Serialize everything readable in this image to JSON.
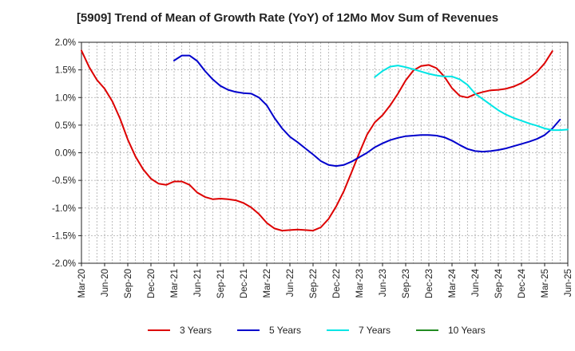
{
  "chart_data": {
    "type": "line",
    "title": "[5909]  Trend of Mean of Growth Rate (YoY) of 12Mo Mov Sum of Revenues",
    "xlabel": "",
    "ylabel": "",
    "ylim": [
      -2.0,
      2.0
    ],
    "yticks": [
      {
        "value": 2.0,
        "label": "2.0%"
      },
      {
        "value": 1.5,
        "label": "1.5%"
      },
      {
        "value": 1.0,
        "label": "1.0%"
      },
      {
        "value": 0.5,
        "label": "0.5%"
      },
      {
        "value": 0.0,
        "label": "0.0%"
      },
      {
        "value": -0.5,
        "label": "-0.5%"
      },
      {
        "value": -1.0,
        "label": "-1.0%"
      },
      {
        "value": -1.5,
        "label": "-1.5%"
      },
      {
        "value": -2.0,
        "label": "-2.0%"
      }
    ],
    "x_range": [
      0,
      63
    ],
    "xticks": [
      {
        "index": 0,
        "label": "Mar-20"
      },
      {
        "index": 3,
        "label": "Jun-20"
      },
      {
        "index": 6,
        "label": "Sep-20"
      },
      {
        "index": 9,
        "label": "Dec-20"
      },
      {
        "index": 12,
        "label": "Mar-21"
      },
      {
        "index": 15,
        "label": "Jun-21"
      },
      {
        "index": 18,
        "label": "Sep-21"
      },
      {
        "index": 21,
        "label": "Dec-21"
      },
      {
        "index": 24,
        "label": "Mar-22"
      },
      {
        "index": 27,
        "label": "Jun-22"
      },
      {
        "index": 30,
        "label": "Sep-22"
      },
      {
        "index": 33,
        "label": "Dec-22"
      },
      {
        "index": 36,
        "label": "Mar-23"
      },
      {
        "index": 39,
        "label": "Jun-23"
      },
      {
        "index": 42,
        "label": "Sep-23"
      },
      {
        "index": 45,
        "label": "Dec-23"
      },
      {
        "index": 48,
        "label": "Mar-24"
      },
      {
        "index": 51,
        "label": "Jun-24"
      },
      {
        "index": 54,
        "label": "Sep-24"
      },
      {
        "index": 57,
        "label": "Dec-24"
      },
      {
        "index": 60,
        "label": "Mar-25"
      },
      {
        "index": 63,
        "label": "Jun-25"
      }
    ],
    "grid": true,
    "legend_position": "bottom",
    "series": [
      {
        "name": "3 Years",
        "color": "#dd0000",
        "start_index": 0,
        "values": [
          1.85,
          1.55,
          1.32,
          1.16,
          0.93,
          0.62,
          0.24,
          -0.07,
          -0.3,
          -0.47,
          -0.56,
          -0.58,
          -0.52,
          -0.52,
          -0.58,
          -0.72,
          -0.8,
          -0.84,
          -0.83,
          -0.84,
          -0.86,
          -0.91,
          -0.99,
          -1.11,
          -1.27,
          -1.37,
          -1.41,
          -1.4,
          -1.39,
          -1.4,
          -1.41,
          -1.35,
          -1.2,
          -0.97,
          -0.69,
          -0.35,
          0.0,
          0.33,
          0.55,
          0.68,
          0.86,
          1.07,
          1.31,
          1.49,
          1.57,
          1.59,
          1.53,
          1.38,
          1.17,
          1.03,
          1.0,
          1.06,
          1.1,
          1.13,
          1.14,
          1.16,
          1.2,
          1.26,
          1.35,
          1.46,
          1.62,
          1.84
        ]
      },
      {
        "name": "5 Years",
        "color": "#0000cc",
        "start_index": 12,
        "values": [
          1.67,
          1.76,
          1.76,
          1.66,
          1.48,
          1.33,
          1.21,
          1.14,
          1.1,
          1.08,
          1.07,
          1.0,
          0.86,
          0.63,
          0.44,
          0.29,
          0.19,
          0.08,
          -0.03,
          -0.15,
          -0.22,
          -0.24,
          -0.22,
          -0.16,
          -0.08,
          0.0,
          0.1,
          0.17,
          0.23,
          0.27,
          0.3,
          0.31,
          0.32,
          0.32,
          0.31,
          0.28,
          0.22,
          0.14,
          0.07,
          0.03,
          0.02,
          0.03,
          0.05,
          0.08,
          0.12,
          0.16,
          0.2,
          0.25,
          0.32,
          0.44,
          0.6
        ]
      },
      {
        "name": "7 Years",
        "color": "#00e5e5",
        "start_index": 38,
        "values": [
          1.37,
          1.48,
          1.56,
          1.58,
          1.55,
          1.51,
          1.47,
          1.43,
          1.4,
          1.38,
          1.38,
          1.33,
          1.23,
          1.07,
          0.97,
          0.87,
          0.77,
          0.69,
          0.63,
          0.58,
          0.53,
          0.49,
          0.44,
          0.41,
          0.41,
          0.42
        ]
      },
      {
        "name": "10 Years",
        "color": "#228b22",
        "start_index": 0,
        "values": []
      }
    ]
  }
}
